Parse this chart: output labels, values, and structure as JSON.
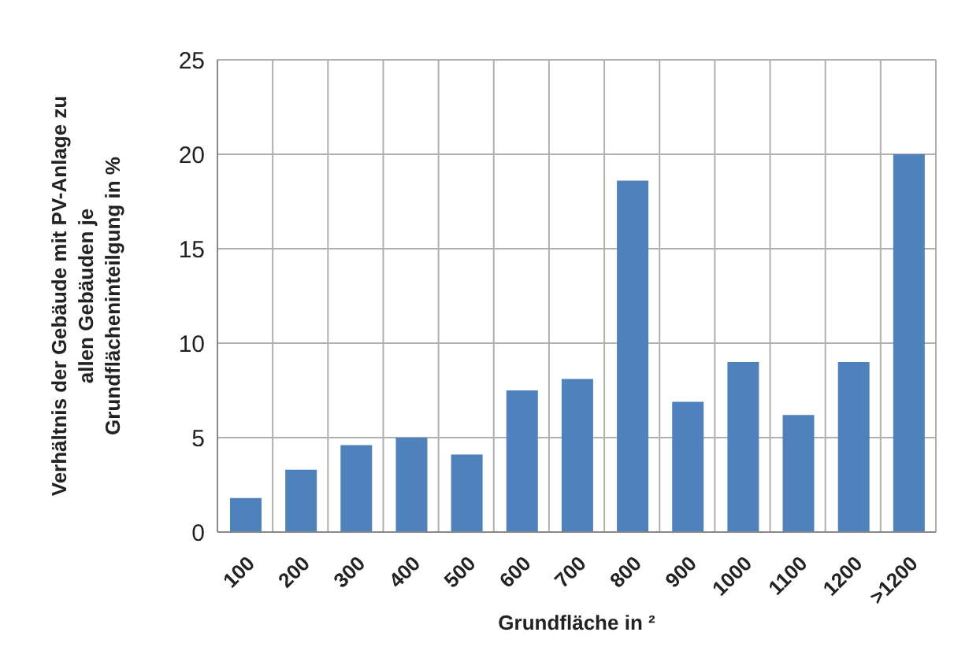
{
  "chart_data": {
    "type": "bar",
    "ylabel": "Verhältnis der Gebäude mit PV-Anlage zu\nallen Gebäuden je\nGrundflächeninteilgung  in %",
    "xlabel": "Grundfläche  in ²",
    "categories": [
      "100",
      "200",
      "300",
      "400",
      "500",
      "600",
      "700",
      "800",
      "900",
      "1000",
      "1100",
      "1200",
      ">1200"
    ],
    "values": [
      1.8,
      3.3,
      4.6,
      5.0,
      4.1,
      7.5,
      8.1,
      18.6,
      6.9,
      9.0,
      6.2,
      9.0,
      20.0
    ],
    "color": "#4f81bd",
    "ylim": [
      0,
      25
    ],
    "yticks": [
      0,
      5,
      10,
      15,
      20,
      25
    ],
    "grid": true
  }
}
